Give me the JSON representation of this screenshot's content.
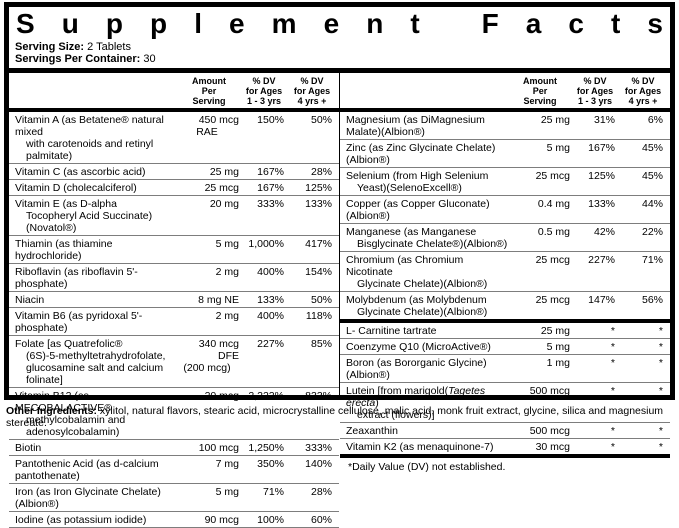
{
  "title": "Supplement Facts",
  "serving": {
    "size_label": "Serving Size:",
    "size_value": " 2 Tablets",
    "container_label": "Servings Per Container:",
    "container_value": " 30"
  },
  "columns": {
    "amount": [
      "Amount",
      "Per",
      "Serving"
    ],
    "dv1": [
      "% DV",
      "for Ages",
      "1 - 3 yrs"
    ],
    "dv2": [
      "% DV",
      "for Ages",
      "4 yrs +"
    ]
  },
  "left_rows": [
    {
      "name": [
        "Vitamin A (as Betatene® natural mixed",
        "with carotenoids and retinyl palmitate)"
      ],
      "amount": [
        "450 mcg",
        "RAE"
      ],
      "dv1": "150%",
      "dv2": "50%"
    },
    {
      "name": [
        "Vitamin C (as ascorbic acid)"
      ],
      "amount": [
        "25 mg"
      ],
      "dv1": "167%",
      "dv2": "28%"
    },
    {
      "name": [
        "Vitamin D (cholecalciferol)"
      ],
      "amount": [
        "25 mcg"
      ],
      "dv1": "167%",
      "dv2": "125%"
    },
    {
      "name": [
        "Vitamin E (as D-alpha",
        "Tocopheryl Acid Succinate)(Novatol®)"
      ],
      "amount": [
        "20 mg"
      ],
      "dv1": "333%",
      "dv2": "133%"
    },
    {
      "name": [
        "Thiamin (as thiamine hydrochloride)"
      ],
      "amount": [
        "5 mg"
      ],
      "dv1": "1,000%",
      "dv2": "417%"
    },
    {
      "name": [
        "Riboflavin (as riboflavin 5'-phosphate)"
      ],
      "amount": [
        "2 mg"
      ],
      "dv1": "400%",
      "dv2": "154%"
    },
    {
      "name": [
        "Niacin"
      ],
      "amount": [
        "8 mg NE"
      ],
      "dv1": "133%",
      "dv2": "50%"
    },
    {
      "name": [
        "Vitamin B6 (as pyridoxal 5'-phosphate)"
      ],
      "amount": [
        "2 mg"
      ],
      "dv1": "400%",
      "dv2": "118%"
    },
    {
      "name": [
        "Folate [as Quatrefolic®",
        "(6S)-5-methyltetrahydrofolate,",
        "glucosamine salt and calcium folinate]"
      ],
      "amount": [
        "340 mcg DFE",
        "(200 mcg)"
      ],
      "dv1": "227%",
      "dv2": "85%"
    },
    {
      "name": [
        "Vitamin B12 (as MECOBALACTIVE®",
        "methylcobalamin and adenosylcobalamin)"
      ],
      "amount": [
        "20 mcg"
      ],
      "dv1": "2,222%",
      "dv2": "833%"
    },
    {
      "name": [
        "Biotin"
      ],
      "amount": [
        "100 mcg"
      ],
      "dv1": "1,250%",
      "dv2": "333%"
    },
    {
      "name": [
        "Pantothenic Acid (as d-calcium pantothenate)"
      ],
      "amount": [
        "7 mg"
      ],
      "dv1": "350%",
      "dv2": "140%"
    },
    {
      "name": [
        "Iron (as Iron Glycinate Chelate)(Albion®)"
      ],
      "amount": [
        "5 mg"
      ],
      "dv1": "71%",
      "dv2": "28%"
    },
    {
      "name": [
        "Iodine (as potassium iodide)"
      ],
      "amount": [
        "90 mcg"
      ],
      "dv1": "100%",
      "dv2": "60%"
    }
  ],
  "right_rows": [
    {
      "name": [
        "Magnesium (as DiMagnesium Malate)(Albion®)"
      ],
      "amount": [
        "25 mg"
      ],
      "dv1": "31%",
      "dv2": "6%"
    },
    {
      "name": [
        "Zinc (as Zinc Glycinate Chelate)(Albion®)"
      ],
      "amount": [
        "5 mg"
      ],
      "dv1": "167%",
      "dv2": "45%"
    },
    {
      "name": [
        "Selenium (from High Selenium",
        "Yeast)(SelenoExcell®)"
      ],
      "amount": [
        "25 mcg"
      ],
      "dv1": "125%",
      "dv2": "45%"
    },
    {
      "name": [
        "Copper (as Copper Gluconate)(Albion®)"
      ],
      "amount": [
        "0.4 mg"
      ],
      "dv1": "133%",
      "dv2": "44%"
    },
    {
      "name": [
        "Manganese (as Manganese",
        "Bisglycinate Chelate®)(Albion®)"
      ],
      "amount": [
        "0.5 mg"
      ],
      "dv1": "42%",
      "dv2": "22%"
    },
    {
      "name": [
        "Chromium (as Chromium Nicotinate",
        "Glycinate Chelate)(Albion®)"
      ],
      "amount": [
        "25 mcg"
      ],
      "dv1": "227%",
      "dv2": "71%"
    },
    {
      "name": [
        "Molybdenum (as Molybdenum",
        "Glycinate Chelate)(Albion®)"
      ],
      "amount": [
        "25 mcg"
      ],
      "dv1": "147%",
      "dv2": "56%"
    },
    {
      "divider": true
    },
    {
      "name": [
        "L- Carnitine tartrate"
      ],
      "amount": [
        "25 mg"
      ],
      "dv1": "*",
      "dv2": "*"
    },
    {
      "name": [
        "Coenzyme Q10 (MicroActive®)"
      ],
      "amount": [
        "5 mg"
      ],
      "dv1": "*",
      "dv2": "*"
    },
    {
      "name": [
        "Boron (as Bororganic Glycine)(Albion®)"
      ],
      "amount": [
        "1 mg"
      ],
      "dv1": "*",
      "dv2": "*"
    },
    {
      "name": [
        [
          "Lutein [from marigold(",
          {
            "i": "Tagetes erecta"
          },
          ")"
        ],
        "extract (flowers)]"
      ],
      "amount": [
        "500 mcg"
      ],
      "dv1": "*",
      "dv2": "*"
    },
    {
      "name": [
        "Zeaxanthin"
      ],
      "amount": [
        "500 mcg"
      ],
      "dv1": "*",
      "dv2": "*"
    },
    {
      "name": [
        "Vitamin K2 (as menaquinone-7)"
      ],
      "amount": [
        "30 mcg"
      ],
      "dv1": "*",
      "dv2": "*"
    },
    {
      "divider": true
    }
  ],
  "footnote": "*Daily Value (DV) not established.",
  "other_ingredients": {
    "label": "Other Ingredients:",
    "text": " xylitol, natural flavors, stearic acid, microcrystalline cellulose, malic acid, monk fruit extract, glycine, silica and magnesium stereate."
  },
  "colors": {
    "ink": "#000000",
    "paper": "#ffffff",
    "rule": "#7d7d7d"
  }
}
